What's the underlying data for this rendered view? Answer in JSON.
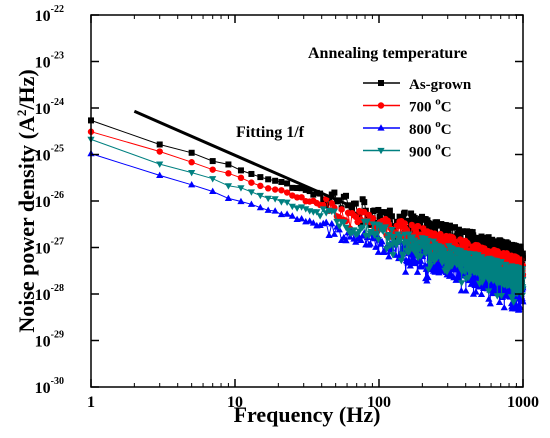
{
  "chart_data": {
    "type": "line",
    "x_scale": "log",
    "y_scale": "log",
    "xlabel": "Frequency (Hz)",
    "ylabel": {
      "prefix": "Noise power density (A",
      "sup": "2",
      "suffix": "/Hz)"
    },
    "xlim": [
      1,
      1000
    ],
    "ylim": [
      1e-30,
      1e-22
    ],
    "x_ticks": [
      {
        "value": 1,
        "label": "1"
      },
      {
        "value": 10,
        "label": "10"
      },
      {
        "value": 100,
        "label": "100"
      },
      {
        "value": 1000,
        "label": "1000"
      }
    ],
    "y_ticks": [
      {
        "value": 1e-30,
        "base": "10",
        "exp": "-30"
      },
      {
        "value": 1e-29,
        "base": "10",
        "exp": "-29"
      },
      {
        "value": 1e-28,
        "base": "10",
        "exp": "-28"
      },
      {
        "value": 1e-27,
        "base": "10",
        "exp": "-27"
      },
      {
        "value": 1e-26,
        "base": "10",
        "exp": "-26"
      },
      {
        "value": 1e-25,
        "base": "10",
        "exp": "-25"
      },
      {
        "value": 1e-24,
        "base": "10",
        "exp": "-24"
      },
      {
        "value": 1e-23,
        "base": "10",
        "exp": "-23"
      },
      {
        "value": 1e-22,
        "base": "10",
        "exp": "-22"
      }
    ],
    "legend": {
      "title": "Annealing temperature",
      "position": "top-right",
      "entries": [
        {
          "name": "As-grown",
          "sup": ""
        },
        {
          "name": "700 ",
          "sup": "o",
          "suffix": "C"
        },
        {
          "name": "800 ",
          "sup": "o",
          "suffix": "C"
        },
        {
          "name": "900 ",
          "sup": "o",
          "suffix": "C"
        }
      ]
    },
    "annotation": {
      "text": "Fitting 1/f",
      "line": {
        "x": [
          2,
          65
        ],
        "y": [
          8.5e-25,
          7.6e-27
        ]
      }
    },
    "series": [
      {
        "name": "As-grown",
        "color": "#000000",
        "marker": "square",
        "amplitude": 5.2e-25,
        "exponent": 1.0,
        "noise": 0.16
      },
      {
        "name": "700 °C",
        "color": "#ff0000",
        "marker": "circle",
        "amplitude": 3.3e-25,
        "exponent": 1.0,
        "noise": 0.14
      },
      {
        "name": "800 °C",
        "color": "#0000ff",
        "marker": "triangle-up",
        "amplitude": 1.05e-25,
        "exponent": 0.98,
        "noise": 0.14
      },
      {
        "name": "900 °C",
        "color": "#008080",
        "marker": "triangle-down",
        "amplitude": 2e-25,
        "exponent": 1.0,
        "noise": 0.14
      }
    ]
  }
}
